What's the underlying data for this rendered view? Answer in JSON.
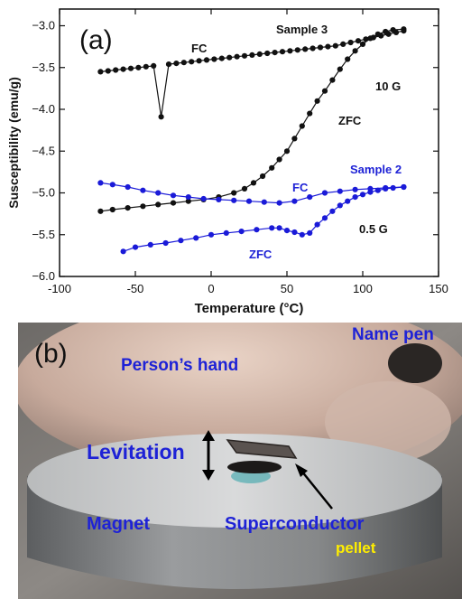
{
  "panel_a": {
    "label": "(a)",
    "annotations": {
      "sample3": "Sample 3",
      "fc_top": "FC",
      "field_10g": "10 G",
      "zfc_top": "ZFC",
      "sample2": "Sample 2",
      "fc_bottom": "FC",
      "field_05g": "0.5 G",
      "zfc_bottom": "ZFC"
    },
    "colors": {
      "sample3": "#111111",
      "sample2": "#1a1ad8"
    }
  },
  "panel_b": {
    "label": "(b)",
    "annotations": {
      "name_pen": "Name pen",
      "hand": "Person’s hand",
      "levitation": "Levitation",
      "magnet": "Magnet",
      "superconductor": "Superconductor",
      "pellet": "pellet"
    }
  },
  "chart_data": {
    "type": "line",
    "xlabel": "Temperature (°C)",
    "ylabel": "Susceptibility (emu/g)",
    "xlim": [
      -100,
      150
    ],
    "ylim": [
      -6.0,
      -2.8
    ],
    "xticks": [
      -100,
      -50,
      0,
      50,
      100,
      150
    ],
    "yticks": [
      -6.0,
      -5.5,
      -5.0,
      -4.5,
      -4.0,
      -3.5,
      -3.0
    ],
    "grid": false,
    "series": [
      {
        "name": "Sample 3 FC",
        "color": "#111111",
        "x": [
          -73,
          -68,
          -63,
          -58,
          -53,
          -48,
          -43,
          -38,
          -33,
          -28,
          -23,
          -18,
          -13,
          -8,
          -3,
          2,
          7,
          12,
          17,
          22,
          27,
          32,
          37,
          42,
          47,
          52,
          57,
          62,
          67,
          72,
          77,
          82,
          87,
          92,
          97,
          102,
          107,
          112,
          117,
          122,
          127
        ],
        "y": [
          -3.55,
          -3.54,
          -3.53,
          -3.52,
          -3.51,
          -3.5,
          -3.49,
          -3.48,
          -4.09,
          -3.46,
          -3.45,
          -3.44,
          -3.43,
          -3.42,
          -3.41,
          -3.4,
          -3.39,
          -3.38,
          -3.37,
          -3.36,
          -3.35,
          -3.34,
          -3.33,
          -3.32,
          -3.31,
          -3.3,
          -3.29,
          -3.28,
          -3.27,
          -3.26,
          -3.25,
          -3.24,
          -3.22,
          -3.2,
          -3.18,
          -3.16,
          -3.14,
          -3.12,
          -3.1,
          -3.08,
          -3.06
        ]
      },
      {
        "name": "Sample 3 ZFC",
        "color": "#111111",
        "x": [
          -73,
          -65,
          -55,
          -45,
          -35,
          -25,
          -15,
          -5,
          5,
          15,
          22,
          28,
          34,
          40,
          45,
          50,
          55,
          60,
          65,
          70,
          75,
          80,
          85,
          90,
          95,
          100,
          105,
          110,
          115,
          120,
          127
        ],
        "y": [
          -5.22,
          -5.2,
          -5.18,
          -5.16,
          -5.14,
          -5.12,
          -5.1,
          -5.08,
          -5.05,
          -5.0,
          -4.95,
          -4.88,
          -4.8,
          -4.7,
          -4.6,
          -4.5,
          -4.35,
          -4.2,
          -4.05,
          -3.9,
          -3.78,
          -3.65,
          -3.52,
          -3.4,
          -3.3,
          -3.22,
          -3.15,
          -3.1,
          -3.07,
          -3.05,
          -3.04
        ]
      },
      {
        "name": "Sample 2 FC",
        "color": "#1a1ad8",
        "x": [
          -73,
          -65,
          -55,
          -45,
          -35,
          -25,
          -15,
          -5,
          5,
          15,
          25,
          35,
          45,
          55,
          65,
          75,
          85,
          95,
          105,
          115,
          127
        ],
        "y": [
          -4.88,
          -4.9,
          -4.93,
          -4.97,
          -5.0,
          -5.03,
          -5.05,
          -5.07,
          -5.08,
          -5.09,
          -5.1,
          -5.11,
          -5.12,
          -5.1,
          -5.05,
          -5.0,
          -4.98,
          -4.96,
          -4.95,
          -4.94,
          -4.93
        ]
      },
      {
        "name": "Sample 2 ZFC",
        "color": "#1a1ad8",
        "x": [
          -58,
          -50,
          -40,
          -30,
          -20,
          -10,
          0,
          10,
          20,
          30,
          40,
          45,
          50,
          55,
          60,
          65,
          70,
          75,
          80,
          85,
          90,
          95,
          100,
          105,
          110,
          115,
          120,
          127
        ],
        "y": [
          -5.7,
          -5.65,
          -5.62,
          -5.6,
          -5.57,
          -5.54,
          -5.5,
          -5.48,
          -5.46,
          -5.44,
          -5.42,
          -5.42,
          -5.45,
          -5.47,
          -5.5,
          -5.48,
          -5.38,
          -5.3,
          -5.22,
          -5.15,
          -5.1,
          -5.05,
          -5.02,
          -4.99,
          -4.97,
          -4.95,
          -4.94,
          -4.93
        ]
      }
    ]
  }
}
